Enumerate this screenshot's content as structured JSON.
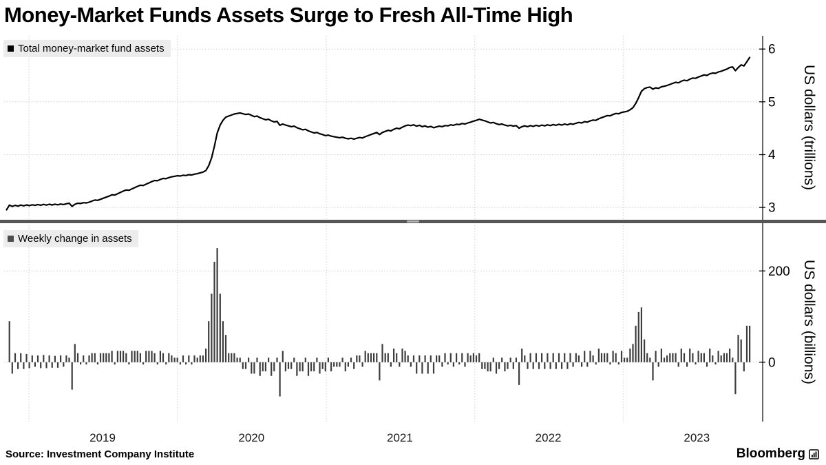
{
  "title": "Money-Market Funds Assets Surge to Fresh All-Time High",
  "source": "Source: Investment Company Institute",
  "brand": {
    "name": "Bloomberg",
    "icon": "bloomberg-bars-logo-icon"
  },
  "x_axis": {
    "domain": [
      "2018-11-01",
      "2023-12-10"
    ],
    "grid_years": [
      2019,
      2020,
      2021,
      2022,
      2023
    ],
    "year_labels": [
      "2019",
      "2020",
      "2021",
      "2022",
      "2023"
    ],
    "grid": "dotted"
  },
  "chart_data": [
    {
      "type": "line",
      "name": "Total money-market fund assets",
      "ylabel": "US dollars (trillions)",
      "unit": "USD trillions",
      "color": "#000000",
      "legend_swatch_color": "#000000",
      "ylim": [
        2.78,
        6.25
      ],
      "yticks": [
        3,
        4,
        5,
        6
      ],
      "legend_position": "top-left",
      "frequency": "weekly",
      "start_date": "2018-11-07",
      "values_trillions": [
        2.955,
        3.045,
        3.02,
        3.04,
        3.025,
        3.045,
        3.03,
        3.048,
        3.035,
        3.05,
        3.04,
        3.055,
        3.042,
        3.058,
        3.045,
        3.06,
        3.048,
        3.062,
        3.05,
        3.065,
        3.055,
        3.07,
        3.08,
        3.02,
        3.06,
        3.08,
        3.075,
        3.09,
        3.085,
        3.1,
        3.12,
        3.14,
        3.135,
        3.155,
        3.175,
        3.195,
        3.215,
        3.24,
        3.235,
        3.26,
        3.285,
        3.31,
        3.33,
        3.325,
        3.35,
        3.375,
        3.4,
        3.42,
        3.415,
        3.44,
        3.465,
        3.49,
        3.51,
        3.505,
        3.53,
        3.55,
        3.545,
        3.565,
        3.58,
        3.59,
        3.6,
        3.595,
        3.61,
        3.605,
        3.62,
        3.615,
        3.63,
        3.64,
        3.655,
        3.67,
        3.7,
        3.79,
        3.94,
        4.16,
        4.41,
        4.56,
        4.65,
        4.71,
        4.73,
        4.75,
        4.77,
        4.78,
        4.79,
        4.775,
        4.76,
        4.77,
        4.745,
        4.72,
        4.73,
        4.7,
        4.68,
        4.66,
        4.67,
        4.64,
        4.62,
        4.63,
        4.555,
        4.58,
        4.56,
        4.545,
        4.53,
        4.54,
        4.51,
        4.49,
        4.47,
        4.48,
        4.45,
        4.43,
        4.41,
        4.42,
        4.395,
        4.38,
        4.36,
        4.37,
        4.35,
        4.34,
        4.33,
        4.32,
        4.33,
        4.31,
        4.3,
        4.31,
        4.295,
        4.31,
        4.325,
        4.315,
        4.34,
        4.36,
        4.38,
        4.4,
        4.42,
        4.38,
        4.42,
        4.44,
        4.46,
        4.45,
        4.48,
        4.5,
        4.49,
        4.52,
        4.545,
        4.56,
        4.55,
        4.565,
        4.54,
        4.555,
        4.53,
        4.545,
        4.52,
        4.535,
        4.51,
        4.525,
        4.54,
        4.53,
        4.55,
        4.545,
        4.565,
        4.555,
        4.575,
        4.57,
        4.59,
        4.58,
        4.6,
        4.615,
        4.635,
        4.65,
        4.67,
        4.655,
        4.64,
        4.62,
        4.6,
        4.61,
        4.585,
        4.57,
        4.58,
        4.56,
        4.545,
        4.555,
        4.54,
        4.55,
        4.5,
        4.53,
        4.545,
        4.53,
        4.55,
        4.535,
        4.555,
        4.54,
        4.56,
        4.545,
        4.565,
        4.55,
        4.57,
        4.555,
        4.575,
        4.56,
        4.58,
        4.565,
        4.585,
        4.575,
        4.595,
        4.61,
        4.6,
        4.625,
        4.615,
        4.64,
        4.655,
        4.65,
        4.68,
        4.7,
        4.72,
        4.74,
        4.735,
        4.76,
        4.78,
        4.775,
        4.8,
        4.81,
        4.82,
        4.85,
        4.89,
        4.97,
        5.08,
        5.2,
        5.25,
        5.27,
        5.28,
        5.24,
        5.265,
        5.255,
        5.285,
        5.295,
        5.31,
        5.33,
        5.35,
        5.37,
        5.36,
        5.39,
        5.41,
        5.4,
        5.43,
        5.45,
        5.445,
        5.47,
        5.49,
        5.51,
        5.5,
        5.53,
        5.545,
        5.54,
        5.565,
        5.58,
        5.6,
        5.62,
        5.65,
        5.66,
        5.59,
        5.65,
        5.7,
        5.68,
        5.76,
        5.84
      ],
      "last_value_trillions": 5.84,
      "peak_2020_trillions": 4.79
    },
    {
      "type": "bar",
      "name": "Weekly change in assets",
      "ylabel": "US dollars (billions)",
      "unit": "USD billions",
      "color": "#3d3d3d",
      "legend_swatch_color": "#4d4d4d",
      "ylim": [
        -130,
        300
      ],
      "yticks": [
        0,
        200
      ],
      "legend_position": "top-left",
      "derived_from": "week-over-week difference of series 0 values, expressed in billions",
      "peak_value_billions": 250,
      "trough_value_billions": -75
    }
  ]
}
